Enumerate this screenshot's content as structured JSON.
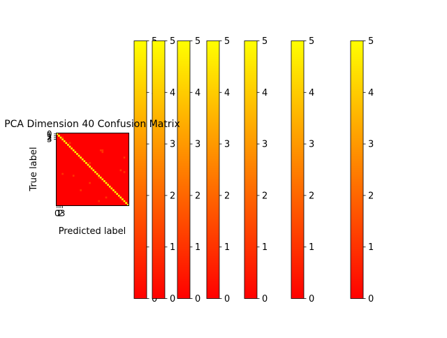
{
  "chart_data": {
    "type": "heatmap",
    "title": "PCA Dimension 40 Confusion Matrix",
    "xlabel": "Predicted label",
    "ylabel": "True label",
    "n_classes": 40,
    "x_tick_labels": [
      "0",
      "1",
      "2",
      "3"
    ],
    "y_tick_labels": [
      "0",
      "1",
      "2",
      "3"
    ],
    "colormap": "autumn",
    "colormap_colors": [
      "#ff0000",
      "#ffff00"
    ],
    "value_range": [
      0,
      5
    ],
    "diagonal_value": 5,
    "off_diagonal": [
      {
        "true": 2,
        "pred": 3,
        "value": 1
      },
      {
        "true": 5,
        "pred": 7,
        "value": 1
      },
      {
        "true": 9,
        "pred": 24,
        "value": 1
      },
      {
        "true": 9,
        "pred": 25,
        "value": 1
      },
      {
        "true": 10,
        "pred": 25,
        "value": 1
      },
      {
        "true": 13,
        "pred": 37,
        "value": 1
      },
      {
        "true": 16,
        "pred": 18,
        "value": 1
      },
      {
        "true": 20,
        "pred": 35,
        "value": 1
      },
      {
        "true": 21,
        "pred": 37,
        "value": 1
      },
      {
        "true": 22,
        "pred": 3,
        "value": 1
      },
      {
        "true": 23,
        "pred": 9,
        "value": 1
      },
      {
        "true": 24,
        "pred": 23,
        "value": 1
      },
      {
        "true": 27,
        "pred": 18,
        "value": 1
      },
      {
        "true": 31,
        "pred": 13,
        "value": 1
      },
      {
        "true": 35,
        "pred": 27,
        "value": 1
      },
      {
        "true": 37,
        "pred": 23,
        "value": 1
      }
    ],
    "colorbars": [
      {
        "ticks": [
          "0",
          "1",
          "2",
          "3",
          "4",
          "5"
        ]
      },
      {
        "ticks": [
          "0",
          "1",
          "2",
          "3",
          "4",
          "5"
        ]
      },
      {
        "ticks": [
          "0",
          "1",
          "2",
          "3",
          "4",
          "5"
        ]
      },
      {
        "ticks": [
          "0",
          "1",
          "2",
          "3",
          "4",
          "5"
        ]
      },
      {
        "ticks": [
          "0",
          "1",
          "2",
          "3",
          "4",
          "5"
        ]
      },
      {
        "ticks": [
          "0",
          "1",
          "2",
          "3",
          "4",
          "5"
        ]
      },
      {
        "ticks": [
          "0",
          "1",
          "2",
          "3",
          "4",
          "5"
        ]
      }
    ]
  }
}
